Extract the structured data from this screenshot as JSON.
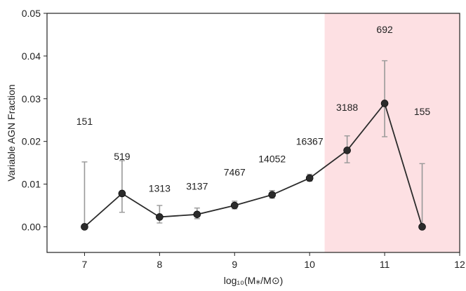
{
  "chart_data": {
    "type": "line",
    "title": "",
    "xlabel": "log₁₀(M⁎/M⊙)",
    "ylabel": "Variable AGN Fraction",
    "xlim": [
      6.5,
      12
    ],
    "ylim": [
      -0.006,
      0.05
    ],
    "xticks": [
      "7",
      "8",
      "9",
      "10",
      "11",
      "12"
    ],
    "yticks": [
      "0.00",
      "0.01",
      "0.02",
      "0.03",
      "0.04",
      "0.05"
    ],
    "grid": false,
    "highlight_region": {
      "x_start": 10.2,
      "x_end": 12,
      "color": "#fde0e3"
    },
    "line_color": "#2b2b2b",
    "marker_color": "#2b2b2b",
    "errorbar_color": "#999999",
    "points": [
      {
        "x": 7.0,
        "y": 0.0,
        "err_low": 0.0,
        "err_high": 0.0152,
        "count": "151",
        "count_y": 0.0247
      },
      {
        "x": 7.5,
        "y": 0.0078,
        "err_low": 0.0034,
        "err_high": 0.0155,
        "count": "519",
        "count_y": 0.0165
      },
      {
        "x": 8.0,
        "y": 0.0023,
        "err_low": 0.0009,
        "err_high": 0.005,
        "count": "1313",
        "count_y": 0.009
      },
      {
        "x": 8.5,
        "y": 0.0029,
        "err_low": 0.0019,
        "err_high": 0.0044,
        "count": "3137",
        "count_y": 0.0095
      },
      {
        "x": 9.0,
        "y": 0.005,
        "err_low": 0.0042,
        "err_high": 0.006,
        "count": "7467",
        "count_y": 0.0128
      },
      {
        "x": 9.5,
        "y": 0.0075,
        "err_low": 0.0067,
        "err_high": 0.0085,
        "count": "14052",
        "count_y": 0.0159
      },
      {
        "x": 10.0,
        "y": 0.0114,
        "err_low": 0.0107,
        "err_high": 0.0123,
        "count": "16367",
        "count_y": 0.02
      },
      {
        "x": 10.5,
        "y": 0.0179,
        "err_low": 0.015,
        "err_high": 0.0213,
        "count": "3188",
        "count_y": 0.028
      },
      {
        "x": 11.0,
        "y": 0.0289,
        "err_low": 0.0211,
        "err_high": 0.0389,
        "count": "692",
        "count_y": 0.0462
      },
      {
        "x": 11.5,
        "y": 0.0,
        "err_low": 0.0,
        "err_high": 0.0148,
        "count": "155",
        "count_y": 0.027
      }
    ]
  }
}
